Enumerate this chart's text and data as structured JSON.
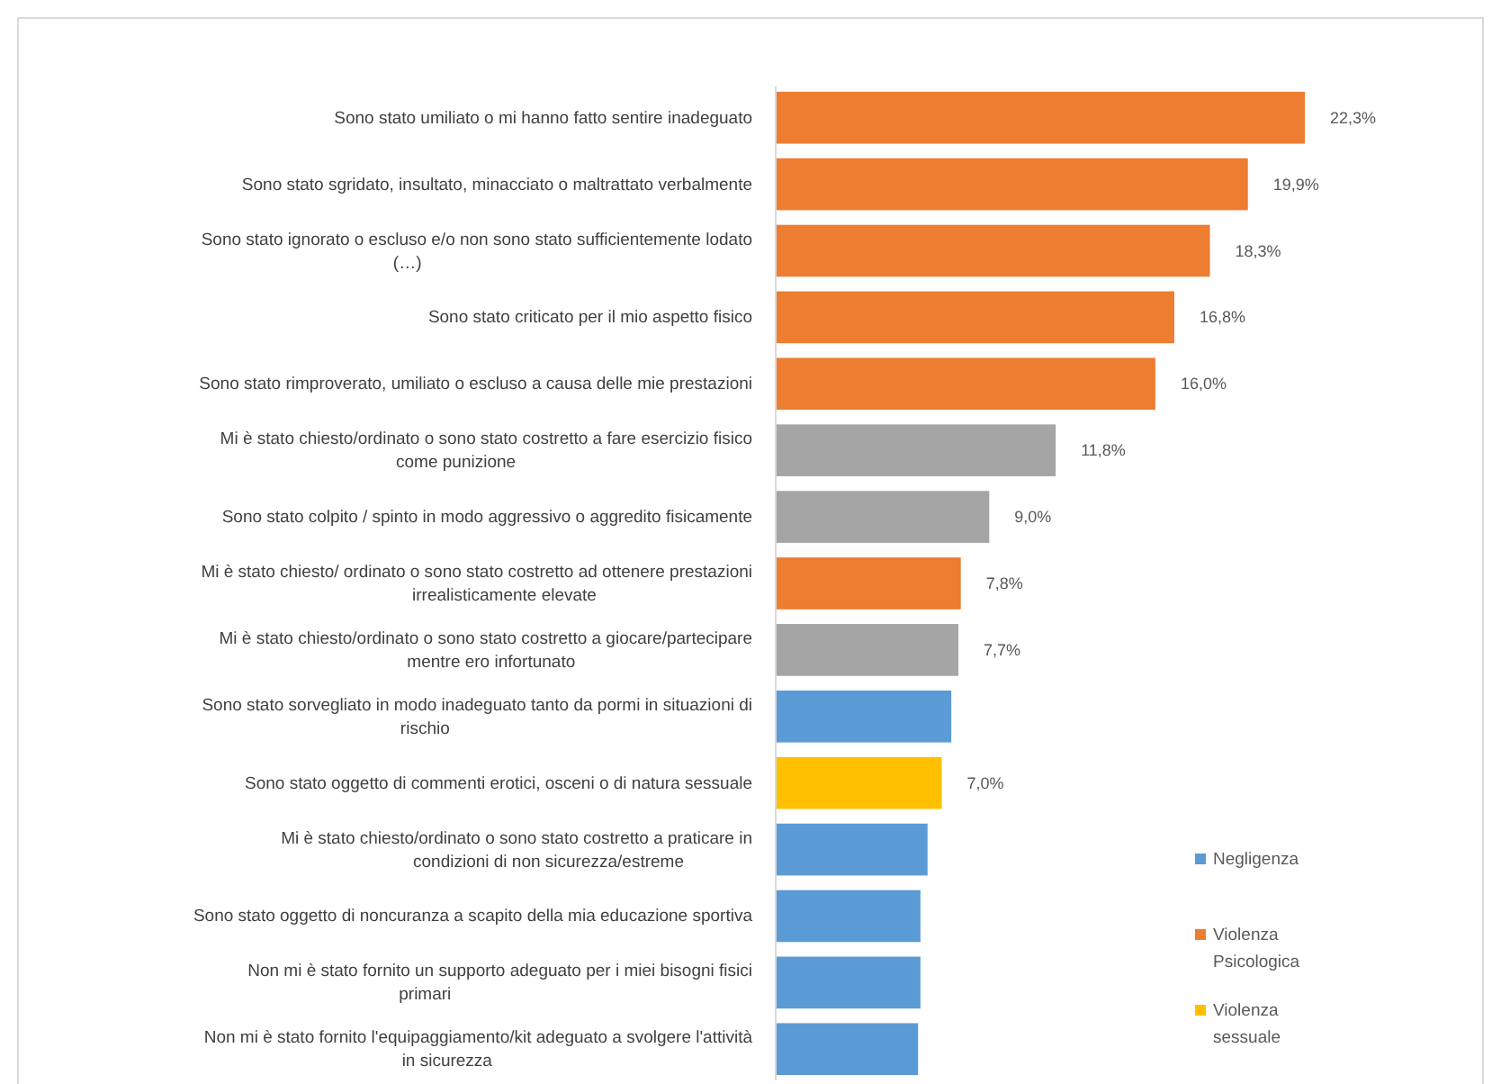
{
  "chart_data": {
    "type": "bar",
    "orientation": "horizontal",
    "legend": "right",
    "categories": [
      "Sono stato umiliato o mi hanno fatto sentire inadeguato",
      "Sono stato sgridato, insultato, minacciato o maltrattato verbalmente",
      "Sono stato ignorato o escluso e/o non sono stato sufficientemente lodato (…)",
      "Sono stato criticato per il mio aspetto fisico",
      "Sono stato rimproverato, umiliato o escluso a causa delle mie prestazioni",
      "Mi è stato chiesto/ordinato o sono stato costretto a fare esercizio fisico come punizione",
      "Sono stato colpito / spinto in modo aggressivo o aggredito fisicamente",
      "Mi è stato chiesto/ ordinato o sono stato costretto ad ottenere prestazioni irrealisticamente elevate",
      "Mi è stato chiesto/ordinato o sono stato costretto a giocare/partecipare mentre ero infortunato",
      "Sono stato sorvegliato in modo inadeguato tanto da pormi in situazioni di rischio",
      "Sono stato oggetto di commenti erotici, osceni o di natura sessuale",
      "Mi è stato chiesto/ordinato o sono stato costretto a praticare in condizioni di non sicurezza/estreme",
      "Sono stato oggetto di noncuranza a scapito della mia educazione sportiva",
      "Non mi è stato fornito un supporto adeguato per i miei bisogni fisici primari",
      "Non mi è stato fornito l'equipaggiamento/kit adeguato a svolgere l'attività in sicurezza"
    ],
    "series": [
      {
        "name": "Negligenza",
        "color": "#5b9bd5",
        "values": [
          null,
          null,
          null,
          null,
          null,
          null,
          null,
          null,
          null,
          7.4,
          null,
          6.4,
          6.1,
          6.1,
          6.0
        ],
        "value_labels": [
          null,
          null,
          null,
          null,
          null,
          null,
          null,
          null,
          null,
          null,
          null,
          null,
          null,
          null,
          null
        ]
      },
      {
        "name": "Violenza Psicologica",
        "color": "#ed7d31",
        "values": [
          22.3,
          19.9,
          18.3,
          16.8,
          16.0,
          null,
          null,
          7.8,
          null,
          null,
          null,
          null,
          null,
          null,
          null
        ],
        "value_labels": [
          "22,3%",
          "19,9%",
          "18,3%",
          "16,8%",
          "16,0%",
          null,
          null,
          "7,8%",
          null,
          null,
          null,
          null,
          null,
          null,
          null
        ]
      },
      {
        "name": "Violenza sessuale",
        "color": "#ffc000",
        "values": [
          null,
          null,
          null,
          null,
          null,
          null,
          null,
          null,
          null,
          null,
          7.0,
          null,
          null,
          null,
          null
        ],
        "value_labels": [
          null,
          null,
          null,
          null,
          null,
          null,
          null,
          null,
          null,
          null,
          "7,0%",
          null,
          null,
          null,
          null
        ]
      },
      {
        "color": "#a5a5a5",
        "values": [
          null,
          null,
          null,
          null,
          null,
          11.8,
          9.0,
          null,
          7.7,
          null,
          null,
          null,
          null,
          null,
          null
        ],
        "value_labels": [
          null,
          null,
          null,
          null,
          null,
          "11,8%",
          "9,0%",
          null,
          "7,7%",
          null,
          null,
          null,
          null,
          null,
          null
        ]
      }
    ]
  }
}
